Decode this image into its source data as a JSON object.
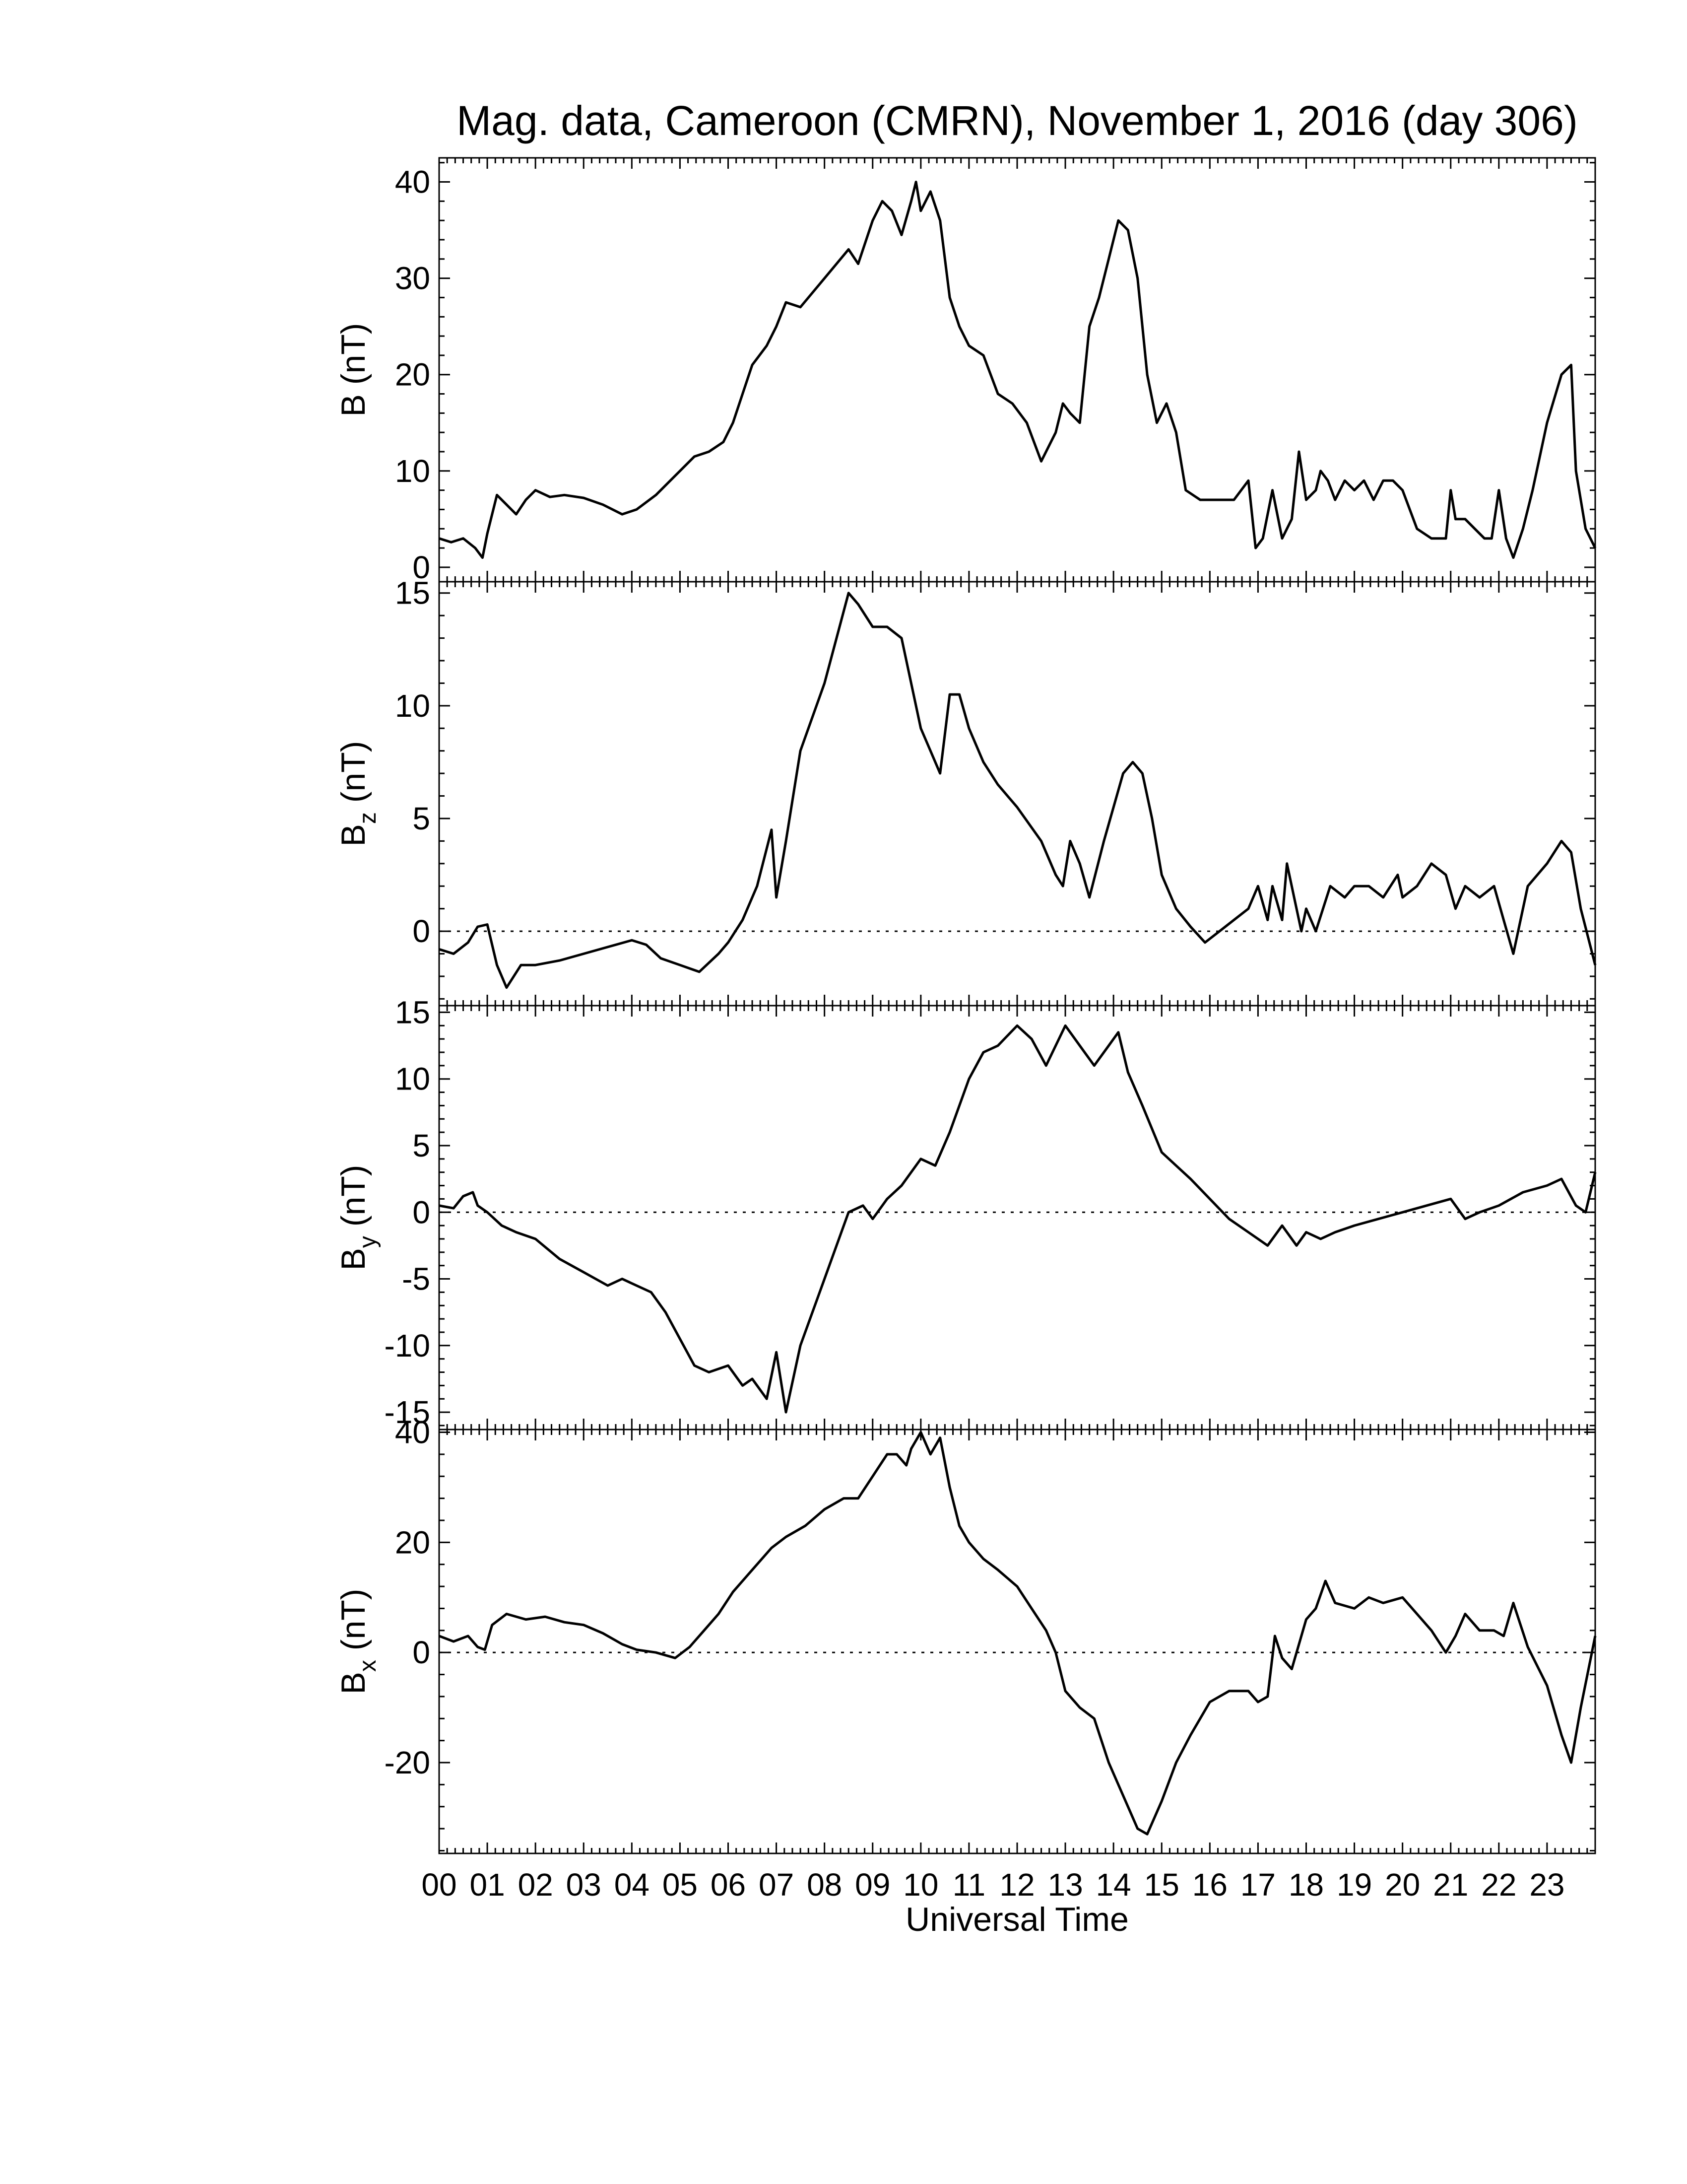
{
  "chart_data": {
    "type": "line",
    "title": "Mag. data, Cameroon (CMRN), November 1, 2016 (day 306)",
    "xlabel": "Universal Time",
    "xlim": [
      0,
      24
    ],
    "x_tick_labels": [
      "00",
      "01",
      "02",
      "03",
      "04",
      "05",
      "06",
      "07",
      "08",
      "09",
      "10",
      "11",
      "12",
      "13",
      "14",
      "15",
      "16",
      "17",
      "18",
      "19",
      "20",
      "21",
      "22",
      "23"
    ],
    "zero_line": "dotted",
    "panels": [
      {
        "id": "B",
        "ylabel_main": "B",
        "ylabel_sub": "",
        "ylabel_unit": "(nT)",
        "ylim": [
          -1.5,
          42.5
        ],
        "yticks": [
          0,
          10,
          20,
          30,
          40
        ],
        "zero_line": false,
        "series": {
          "x": [
            0,
            0.25,
            0.5,
            0.75,
            0.9,
            1.0,
            1.2,
            1.4,
            1.6,
            1.8,
            2.0,
            2.3,
            2.6,
            3.0,
            3.4,
            3.8,
            4.1,
            4.5,
            4.8,
            5.0,
            5.3,
            5.6,
            5.9,
            6.1,
            6.3,
            6.5,
            6.8,
            7.0,
            7.2,
            7.5,
            8.0,
            8.5,
            8.7,
            9.0,
            9.2,
            9.4,
            9.6,
            9.8,
            9.9,
            10.0,
            10.2,
            10.4,
            10.6,
            10.8,
            11.0,
            11.3,
            11.6,
            11.9,
            12.2,
            12.5,
            12.8,
            12.95,
            13.1,
            13.3,
            13.5,
            13.7,
            13.9,
            14.1,
            14.3,
            14.5,
            14.7,
            14.9,
            15.1,
            15.3,
            15.5,
            15.8,
            16.1,
            16.5,
            16.8,
            16.95,
            17.1,
            17.3,
            17.5,
            17.7,
            17.85,
            18.0,
            18.2,
            18.3,
            18.45,
            18.6,
            18.8,
            19.0,
            19.2,
            19.4,
            19.6,
            19.8,
            20.0,
            20.3,
            20.6,
            20.9,
            21.0,
            21.1,
            21.3,
            21.5,
            21.7,
            21.85,
            22.0,
            22.15,
            22.3,
            22.5,
            22.7,
            23.0,
            23.3,
            23.5,
            23.6,
            23.8,
            24.0
          ],
          "values": [
            3,
            2.6,
            3,
            2,
            1,
            3.5,
            7.5,
            6.5,
            5.5,
            7,
            8,
            7.3,
            7.5,
            7.2,
            6.5,
            5.5,
            6,
            7.5,
            9,
            10,
            11.5,
            12,
            13,
            15,
            18,
            21,
            23,
            25,
            27.5,
            27,
            30,
            33,
            31.5,
            36,
            38,
            37,
            34.5,
            38,
            40,
            37,
            39,
            36,
            28,
            25,
            23,
            22,
            18,
            17,
            15,
            11,
            14,
            17,
            16,
            15,
            25,
            28,
            32,
            36,
            35,
            30,
            20,
            15,
            17,
            14,
            8,
            7,
            7,
            7,
            9,
            2,
            3,
            8,
            3,
            5,
            12,
            7,
            8,
            10,
            9,
            7,
            9,
            8,
            9,
            7,
            9,
            9,
            8,
            4,
            3,
            3,
            8,
            5,
            5,
            4,
            3,
            3,
            8,
            3,
            1,
            4,
            8,
            15,
            20,
            21,
            10,
            4,
            2
          ]
        }
      },
      {
        "id": "Bz",
        "ylabel_main": "B",
        "ylabel_sub": "z",
        "ylabel_unit": "(nT)",
        "ylim": [
          -3.3,
          15.5
        ],
        "yticks": [
          0,
          5,
          10,
          15
        ],
        "zero_line": true,
        "series": {
          "x": [
            0,
            0.3,
            0.6,
            0.8,
            1.0,
            1.2,
            1.4,
            1.7,
            2.0,
            2.5,
            3.0,
            3.5,
            4.0,
            4.3,
            4.6,
            5.0,
            5.4,
            5.8,
            6.0,
            6.3,
            6.6,
            6.9,
            7.0,
            7.2,
            7.5,
            8.0,
            8.5,
            8.7,
            9.0,
            9.3,
            9.6,
            10.0,
            10.2,
            10.4,
            10.6,
            10.8,
            11.0,
            11.3,
            11.6,
            12.0,
            12.5,
            12.8,
            12.95,
            13.1,
            13.3,
            13.5,
            13.8,
            14.0,
            14.2,
            14.4,
            14.6,
            14.8,
            15.0,
            15.3,
            15.6,
            15.9,
            16.2,
            16.5,
            16.8,
            17.0,
            17.2,
            17.3,
            17.5,
            17.6,
            17.75,
            17.9,
            18.0,
            18.2,
            18.5,
            18.8,
            19.0,
            19.3,
            19.6,
            19.9,
            20.0,
            20.3,
            20.6,
            20.9,
            21.1,
            21.3,
            21.6,
            21.9,
            22.1,
            22.3,
            22.6,
            23.0,
            23.3,
            23.5,
            23.7,
            24.0
          ],
          "values": [
            -0.8,
            -1,
            -0.5,
            0.2,
            0.3,
            -1.5,
            -2.5,
            -1.5,
            -1.5,
            -1.3,
            -1,
            -0.7,
            -0.4,
            -0.6,
            -1.2,
            -1.5,
            -1.8,
            -1,
            -0.5,
            0.5,
            2,
            4.5,
            1.5,
            4,
            8,
            11,
            15,
            14.5,
            13.5,
            13.5,
            13,
            9,
            8,
            7,
            10.5,
            10.5,
            9,
            7.5,
            6.5,
            5.5,
            4,
            2.5,
            2,
            4,
            3,
            1.5,
            4,
            5.5,
            7,
            7.5,
            7,
            5,
            2.5,
            1,
            0.2,
            -0.5,
            0,
            0.5,
            1,
            2,
            0.5,
            2,
            0.5,
            3,
            1.5,
            0,
            1,
            0,
            2,
            1.5,
            2,
            2,
            1.5,
            2.5,
            1.5,
            2,
            3,
            2.5,
            1,
            2,
            1.5,
            2,
            0.5,
            -1,
            2,
            3,
            4,
            3.5,
            1,
            -1.5
          ]
        }
      },
      {
        "id": "By",
        "ylabel_main": "B",
        "ylabel_sub": "y",
        "ylabel_unit": "(nT)",
        "ylim": [
          -16.3,
          15.5
        ],
        "yticks": [
          -15,
          -10,
          -5,
          0,
          5,
          10,
          15
        ],
        "zero_line": true,
        "series": {
          "x": [
            0,
            0.3,
            0.5,
            0.7,
            0.8,
            1.0,
            1.3,
            1.6,
            2.0,
            2.5,
            3.0,
            3.5,
            3.8,
            4.1,
            4.4,
            4.7,
            5.0,
            5.3,
            5.6,
            6.0,
            6.3,
            6.5,
            6.8,
            7.0,
            7.2,
            7.5,
            8.0,
            8.5,
            8.8,
            9.0,
            9.3,
            9.6,
            10.0,
            10.3,
            10.6,
            11.0,
            11.3,
            11.6,
            12.0,
            12.3,
            12.6,
            13.0,
            13.3,
            13.6,
            13.9,
            14.1,
            14.3,
            14.6,
            15.0,
            15.3,
            15.6,
            16.0,
            16.4,
            16.8,
            17.2,
            17.5,
            17.8,
            18.0,
            18.3,
            18.6,
            19.0,
            19.5,
            20.0,
            20.5,
            21.0,
            21.3,
            21.6,
            22.0,
            22.5,
            23.0,
            23.3,
            23.6,
            23.8,
            24.0
          ],
          "values": [
            0.5,
            0.3,
            1.2,
            1.5,
            0.5,
            0,
            -1,
            -1.5,
            -2,
            -3.5,
            -4.5,
            -5.5,
            -5,
            -5.5,
            -6,
            -7.5,
            -9.5,
            -11.5,
            -12,
            -11.5,
            -13,
            -12.5,
            -14,
            -10.5,
            -15,
            -10,
            -5,
            0,
            0.5,
            -0.5,
            1,
            2,
            4,
            3.5,
            6,
            10,
            12,
            12.5,
            14,
            13,
            11,
            14,
            12.5,
            11,
            12.5,
            13.5,
            10.5,
            8,
            4.5,
            3.5,
            2.5,
            1,
            -0.5,
            -1.5,
            -2.5,
            -1,
            -2.5,
            -1.5,
            -2,
            -1.5,
            -1,
            -0.5,
            0,
            0.5,
            1,
            -0.5,
            0,
            0.5,
            1.5,
            2,
            2.5,
            0.5,
            0,
            3
          ]
        }
      },
      {
        "id": "Bx",
        "ylabel_main": "B",
        "ylabel_sub": "x",
        "ylabel_unit": "(nT)",
        "ylim": [
          -36.5,
          40.5
        ],
        "yticks": [
          -20,
          0,
          20,
          40
        ],
        "zero_line": true,
        "series": {
          "x": [
            0,
            0.3,
            0.6,
            0.8,
            0.95,
            1.1,
            1.4,
            1.8,
            2.2,
            2.6,
            3.0,
            3.4,
            3.8,
            4.1,
            4.5,
            4.9,
            5.2,
            5.5,
            5.8,
            6.1,
            6.5,
            6.9,
            7.2,
            7.6,
            8.0,
            8.4,
            8.7,
            9.0,
            9.3,
            9.5,
            9.7,
            9.8,
            10.0,
            10.2,
            10.4,
            10.6,
            10.8,
            11.0,
            11.3,
            11.6,
            12.0,
            12.3,
            12.6,
            12.8,
            13.0,
            13.3,
            13.6,
            13.9,
            14.2,
            14.5,
            14.7,
            15.0,
            15.3,
            15.6,
            16.0,
            16.4,
            16.8,
            17.0,
            17.2,
            17.35,
            17.5,
            17.7,
            18.0,
            18.2,
            18.4,
            18.6,
            19.0,
            19.3,
            19.6,
            20.0,
            20.3,
            20.6,
            20.9,
            21.1,
            21.3,
            21.6,
            21.9,
            22.1,
            22.3,
            22.6,
            23.0,
            23.3,
            23.5,
            23.7,
            24.0
          ],
          "values": [
            3,
            2,
            3,
            1,
            0.5,
            5,
            7,
            6,
            6.5,
            5.5,
            5,
            3.5,
            1.5,
            0.5,
            0,
            -1,
            1,
            4,
            7,
            11,
            15,
            19,
            21,
            23,
            26,
            28,
            28,
            32,
            36,
            36,
            34,
            37,
            40,
            36,
            39,
            30,
            23,
            20,
            17,
            15,
            12,
            8,
            4,
            0,
            -7,
            -10,
            -12,
            -20,
            -26,
            -32,
            -33,
            -27,
            -20,
            -15,
            -9,
            -7,
            -7,
            -9,
            -8,
            3,
            -1,
            -3,
            6,
            8,
            13,
            9,
            8,
            10,
            9,
            10,
            7,
            4,
            0,
            3,
            7,
            4,
            4,
            3,
            9,
            1,
            -6,
            -15,
            -20,
            -10,
            3
          ]
        }
      }
    ]
  }
}
